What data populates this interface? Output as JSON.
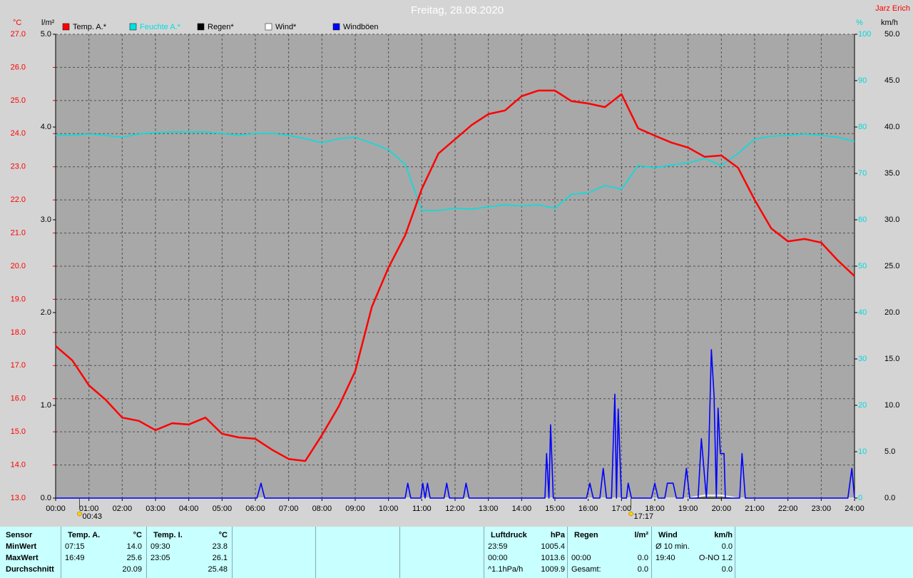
{
  "chart_data": {
    "type": "line",
    "title": "Freitag, 28.08.2020",
    "author": "Jarz Erich",
    "x": [
      0,
      0.5,
      1,
      1.5,
      2,
      2.5,
      3,
      3.5,
      4,
      4.5,
      5,
      5.5,
      6,
      6.5,
      7,
      7.5,
      8,
      8.5,
      9,
      9.5,
      10,
      10.5,
      11,
      11.5,
      12,
      12.5,
      13,
      13.5,
      14,
      14.5,
      15,
      15.5,
      16,
      16.5,
      17,
      17.5,
      18,
      18.5,
      19,
      19.5,
      20,
      20.5,
      21,
      21.5,
      22,
      22.5,
      23,
      23.5,
      24
    ],
    "xlim": [
      0,
      24
    ],
    "xticks": [
      {
        "value": 0,
        "label": "00:00"
      },
      {
        "value": 1,
        "label": "01:00"
      },
      {
        "value": 2,
        "label": "02:00"
      },
      {
        "value": 3,
        "label": "03:00"
      },
      {
        "value": 4,
        "label": "04:00"
      },
      {
        "value": 5,
        "label": "05:00"
      },
      {
        "value": 6,
        "label": "06:00"
      },
      {
        "value": 7,
        "label": "07:00"
      },
      {
        "value": 8,
        "label": "08:00"
      },
      {
        "value": 9,
        "label": "09:00"
      },
      {
        "value": 10,
        "label": "10:00"
      },
      {
        "value": 11,
        "label": "11:00"
      },
      {
        "value": 12,
        "label": "12:00"
      },
      {
        "value": 13,
        "label": "13:00"
      },
      {
        "value": 14,
        "label": "14:00"
      },
      {
        "value": 15,
        "label": "15:00"
      },
      {
        "value": 16,
        "label": "16:00"
      },
      {
        "value": 17,
        "label": "17:00"
      },
      {
        "value": 18,
        "label": "18:00"
      },
      {
        "value": 19,
        "label": "19:00"
      },
      {
        "value": 20,
        "label": "20:00"
      },
      {
        "value": 21,
        "label": "21:00"
      },
      {
        "value": 22,
        "label": "22:00"
      },
      {
        "value": 23,
        "label": "23:00"
      },
      {
        "value": 24,
        "label": "24:00"
      }
    ],
    "grid": true,
    "axes": [
      {
        "unit": "°C",
        "color": "#ff0000",
        "side": "left",
        "lim": [
          13,
          27
        ],
        "ticks": [
          {
            "value": 13,
            "label": "13.0"
          },
          {
            "value": 14,
            "label": "14.0"
          },
          {
            "value": 15,
            "label": "15.0"
          },
          {
            "value": 16,
            "label": "16.0"
          },
          {
            "value": 17,
            "label": "17.0"
          },
          {
            "value": 18,
            "label": "18.0"
          },
          {
            "value": 19,
            "label": "19.0"
          },
          {
            "value": 20,
            "label": "20.0"
          },
          {
            "value": 21,
            "label": "21.0"
          },
          {
            "value": 22,
            "label": "22.0"
          },
          {
            "value": 23,
            "label": "23.0"
          },
          {
            "value": 24,
            "label": "24.0"
          },
          {
            "value": 25,
            "label": "25.0"
          },
          {
            "value": 26,
            "label": "26.0"
          },
          {
            "value": 27,
            "label": "27.0"
          }
        ]
      },
      {
        "unit": "l/m²",
        "color": "#000000",
        "side": "left",
        "lim": [
          0,
          5
        ],
        "ticks": [
          {
            "value": 0,
            "label": "0.0"
          },
          {
            "value": 1,
            "label": "1.0"
          },
          {
            "value": 2,
            "label": "2.0"
          },
          {
            "value": 3,
            "label": "3.0"
          },
          {
            "value": 4,
            "label": "4.0"
          },
          {
            "value": 5,
            "label": "5.0"
          }
        ]
      },
      {
        "unit": "%",
        "color": "#00d8d8",
        "side": "right",
        "lim": [
          0,
          100
        ],
        "ticks": [
          0,
          10,
          20,
          30,
          40,
          50,
          60,
          70,
          80,
          90,
          100
        ]
      },
      {
        "unit": "km/h",
        "color": "#000000",
        "side": "right",
        "lim": [
          0,
          50
        ],
        "ticks": [
          {
            "value": 0,
            "label": "0.0"
          },
          {
            "value": 5,
            "label": "5.0"
          },
          {
            "value": 10,
            "label": "10.0"
          },
          {
            "value": 15,
            "label": "15.0"
          },
          {
            "value": 20,
            "label": "20.0"
          },
          {
            "value": 25,
            "label": "25.0"
          },
          {
            "value": 30,
            "label": "30.0"
          },
          {
            "value": 35,
            "label": "35.0"
          },
          {
            "value": 40,
            "label": "40.0"
          },
          {
            "value": 45,
            "label": "45.0"
          },
          {
            "value": 50,
            "label": "50.0"
          }
        ]
      }
    ],
    "series": [
      {
        "name": "Temp. A.*",
        "color": "#ff0000",
        "axis": 0,
        "values": [
          17.59,
          17.16,
          16.4,
          15.97,
          15.43,
          15.33,
          15.05,
          15.26,
          15.22,
          15.43,
          14.94,
          14.83,
          14.79,
          14.46,
          14.18,
          14.12,
          14.9,
          15.76,
          16.83,
          18.77,
          19.96,
          20.93,
          22.33,
          23.4,
          23.83,
          24.26,
          24.59,
          24.7,
          25.13,
          25.3,
          25.3,
          24.98,
          24.91,
          24.8,
          25.19,
          24.16,
          23.94,
          23.73,
          23.58,
          23.3,
          23.34,
          22.97,
          22.0,
          21.14,
          20.75,
          20.82,
          20.71,
          20.17,
          19.7
        ]
      },
      {
        "name": "Feuchte A.*",
        "color": "#00e0e0",
        "axis": 2,
        "values": [
          78.2,
          78.2,
          78.5,
          78.2,
          77.8,
          78.5,
          78.8,
          78.9,
          78.9,
          78.9,
          78.6,
          78.2,
          78.6,
          78.6,
          78.2,
          77.5,
          76.6,
          77.5,
          77.8,
          76.5,
          75.1,
          72.0,
          62.0,
          62.0,
          62.5,
          62.3,
          62.8,
          63.2,
          63.0,
          63.2,
          62.5,
          65.5,
          65.8,
          67.4,
          66.6,
          71.7,
          71.2,
          71.8,
          72.3,
          73.2,
          71.7,
          74.3,
          77.4,
          78.0,
          78.2,
          78.5,
          78.2,
          77.8,
          76.9
        ]
      },
      {
        "name": "Regen*",
        "color": "#000000",
        "axis": 1,
        "values": [
          0,
          0,
          0,
          0,
          0,
          0,
          0,
          0,
          0,
          0,
          0,
          0,
          0,
          0,
          0,
          0,
          0,
          0,
          0,
          0,
          0,
          0,
          0,
          0,
          0,
          0,
          0,
          0,
          0,
          0,
          0,
          0,
          0,
          0,
          0,
          0,
          0,
          0,
          0,
          0,
          0,
          0,
          0,
          0,
          0,
          0,
          0,
          0,
          0
        ]
      },
      {
        "name": "Wind*",
        "color": "#ffffff",
        "axis": 3,
        "values": [
          0,
          0,
          0,
          0,
          0,
          0,
          0,
          0,
          0,
          0,
          0,
          0,
          0,
          0,
          0,
          0,
          0,
          0,
          0,
          0,
          0,
          0,
          0,
          0,
          0,
          0,
          0,
          0,
          0,
          0,
          0,
          0,
          0,
          0,
          0,
          0,
          0,
          0,
          0,
          0.3,
          0.3,
          0,
          0,
          0,
          0,
          0,
          0,
          0,
          0
        ]
      },
      {
        "name": "Windböen",
        "color": "#0000ff",
        "axis": 3,
        "x": [
          0,
          6.05,
          6.17,
          6.28,
          10.5,
          10.58,
          10.67,
          10.97,
          11.03,
          11.1,
          11.17,
          11.25,
          11.67,
          11.75,
          11.83,
          12.25,
          12.33,
          12.42,
          14.7,
          14.75,
          14.82,
          14.87,
          14.95,
          15.95,
          16.05,
          16.15,
          16.35,
          16.45,
          16.55,
          16.7,
          16.8,
          16.85,
          16.9,
          17.0,
          17.15,
          17.2,
          17.3,
          17.9,
          18.0,
          18.1,
          18.3,
          18.38,
          18.45,
          18.55,
          18.65,
          18.85,
          18.95,
          19.05,
          19.3,
          19.4,
          19.55,
          19.62,
          19.7,
          19.78,
          19.85,
          19.9,
          19.97,
          20.08,
          20.12,
          20.55,
          20.62,
          20.72,
          23.8,
          23.92,
          24
        ],
        "values": [
          0,
          0,
          1.6,
          0,
          0,
          1.6,
          0,
          0,
          1.6,
          0,
          1.6,
          0,
          0,
          1.6,
          0,
          0,
          1.6,
          0,
          0,
          4.8,
          0,
          7.9,
          0,
          0,
          1.6,
          0,
          0,
          3.2,
          0,
          0,
          11.2,
          0,
          9.6,
          0,
          0,
          1.6,
          0,
          0,
          1.6,
          0,
          0,
          1.6,
          1.6,
          1.6,
          0,
          0,
          3.2,
          0,
          0,
          6.4,
          0,
          4.8,
          16.0,
          11.0,
          0,
          9.7,
          4.8,
          4.8,
          0,
          0,
          4.8,
          0,
          0,
          3.2,
          0
        ]
      }
    ],
    "annotations": [
      {
        "x": 0.717,
        "label": "00:43"
      },
      {
        "x": 17.283,
        "label": "17:17"
      }
    ]
  },
  "stats": {
    "label_header": "Sensor",
    "row_labels": [
      "MinWert",
      "MaxWert",
      "Durchschnitt"
    ],
    "groups": [
      {
        "title": "Temp. A.",
        "unit": "°C",
        "cells": [
          [
            "07:15",
            "14.0"
          ],
          [
            "16:49",
            "25.6"
          ],
          [
            null,
            "20.09"
          ]
        ]
      },
      {
        "title": "Temp. I.",
        "unit": "°C",
        "cells": [
          [
            "09:30",
            "23.8"
          ],
          [
            "23:05",
            "26.1"
          ],
          [
            null,
            "25.48"
          ]
        ]
      },
      {
        "title": "Luftdruck",
        "unit": "hPa",
        "cells": [
          [
            "23:59",
            "1005.4"
          ],
          [
            "00:00",
            "1013.6"
          ],
          [
            "^1.1hPa/h",
            "1009.9"
          ]
        ]
      },
      {
        "title": "Regen",
        "unit": "l/m²",
        "cells": [
          [
            null,
            null
          ],
          [
            "00:00",
            "0.0"
          ],
          [
            "Gesamt:",
            "0.0"
          ]
        ]
      },
      {
        "title": "Wind",
        "unit": "km/h",
        "cells": [
          [
            "Ø 10 min.",
            "0.0"
          ],
          [
            "19:40",
            "O-NO 1.2"
          ],
          [
            null,
            "0.0"
          ]
        ]
      }
    ]
  }
}
